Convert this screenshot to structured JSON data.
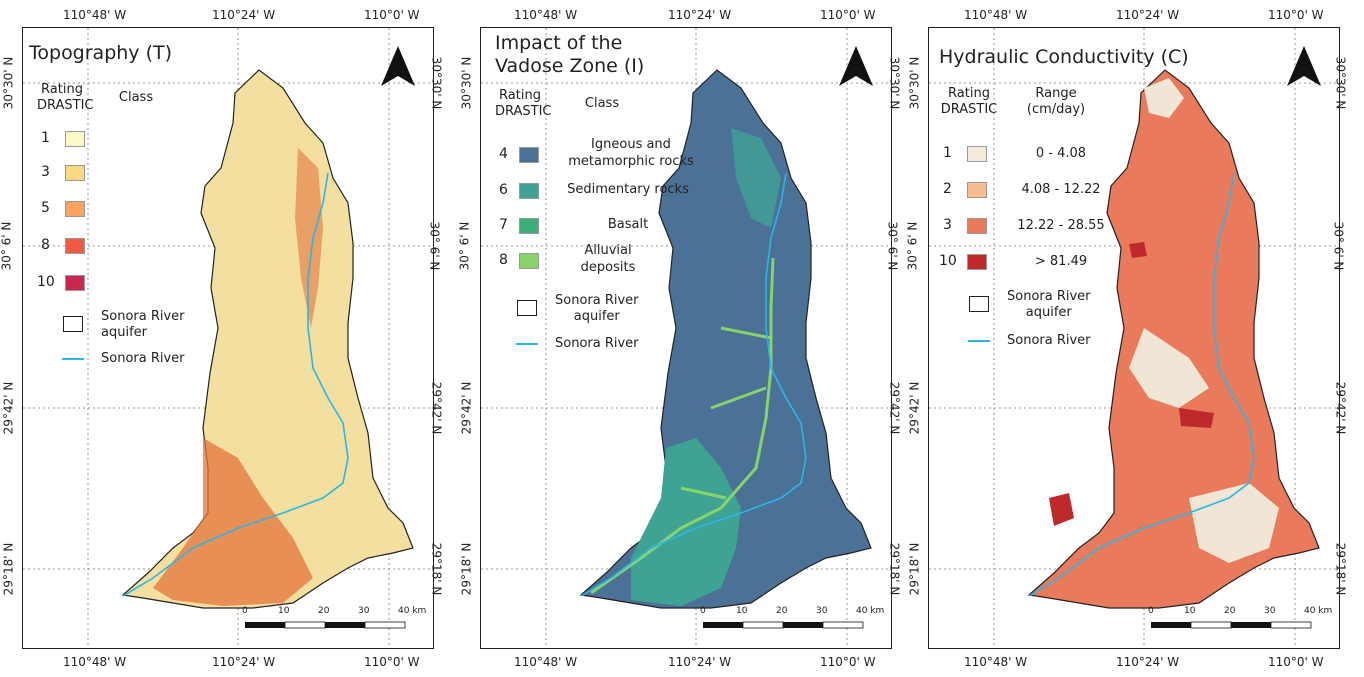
{
  "coords": {
    "top": [
      "110°48' W",
      "110°24' W",
      "110°0' W"
    ],
    "bottom": [
      "110°48' W",
      "110°24' W",
      "110°0' W"
    ],
    "lat": [
      "30°30' N",
      "30° 6' N",
      "29°42' N",
      "29°18' N"
    ]
  },
  "colors": {
    "river": "#29b6e8",
    "outline": "#222222"
  },
  "panels": [
    {
      "title_lines": [
        "Topography (T)"
      ],
      "rating_header": [
        "Rating",
        "DRASTIC"
      ],
      "class_header": [
        "Class"
      ],
      "rows": [
        {
          "rating": "1",
          "color": "#fdf9c6",
          "label": ""
        },
        {
          "rating": "3",
          "color": "#fbd982",
          "label": ""
        },
        {
          "rating": "5",
          "color": "#f8a35e",
          "label": ""
        },
        {
          "rating": "8",
          "color": "#ef5a46",
          "label": ""
        },
        {
          "rating": "10",
          "color": "#c8284f",
          "label": ""
        }
      ],
      "aquifer_label": [
        "Sonora River",
        "aquifer"
      ],
      "river_label": "Sonora River",
      "scale": [
        "0",
        "10",
        "20",
        "30",
        "40 km"
      ],
      "map_fill": "#f3dfa0",
      "map_accent": "#e4743e"
    },
    {
      "title_lines": [
        "Impact of the",
        "Vadose Zone (I)"
      ],
      "rating_header": [
        "Rating",
        "DRASTIC"
      ],
      "class_header": [
        "Class"
      ],
      "rows": [
        {
          "rating": "4",
          "color": "#4b7197",
          "label": "Igneous and metamorphic rocks"
        },
        {
          "rating": "6",
          "color": "#3fa394",
          "label": "Sedimentary rocks"
        },
        {
          "rating": "7",
          "color": "#3bb07a",
          "label": "Basalt"
        },
        {
          "rating": "8",
          "color": "#86d46a",
          "label": "Alluvial deposits"
        }
      ],
      "aquifer_label": [
        "Sonora River",
        "aquifer"
      ],
      "river_label": "Sonora River",
      "scale": [
        "0",
        "10",
        "20",
        "30",
        "40 km"
      ],
      "map_fill": "#4b7197",
      "map_accent": "#3fa394"
    },
    {
      "title_lines": [
        "Hydraulic Conductivity (C)"
      ],
      "rating_header": [
        "Rating",
        "DRASTIC"
      ],
      "class_header": [
        "Range",
        "(cm/day)"
      ],
      "rows": [
        {
          "rating": "1",
          "color": "#f6ebdb",
          "label": "0 - 4.08"
        },
        {
          "rating": "2",
          "color": "#f8bd8f",
          "label": "4.08 - 12.22"
        },
        {
          "rating": "3",
          "color": "#e97b5c",
          "label": "12.22 - 28.55"
        },
        {
          "rating": "10",
          "color": "#c0292c",
          "label": "> 81.49"
        }
      ],
      "aquifer_label": [
        "Sonora River",
        "aquifer"
      ],
      "river_label": "Sonora River",
      "scale": [
        "0",
        "10",
        "20",
        "30",
        "40 km"
      ],
      "map_fill": "#e97b5c",
      "map_accent": "#f1e6d6"
    }
  ]
}
